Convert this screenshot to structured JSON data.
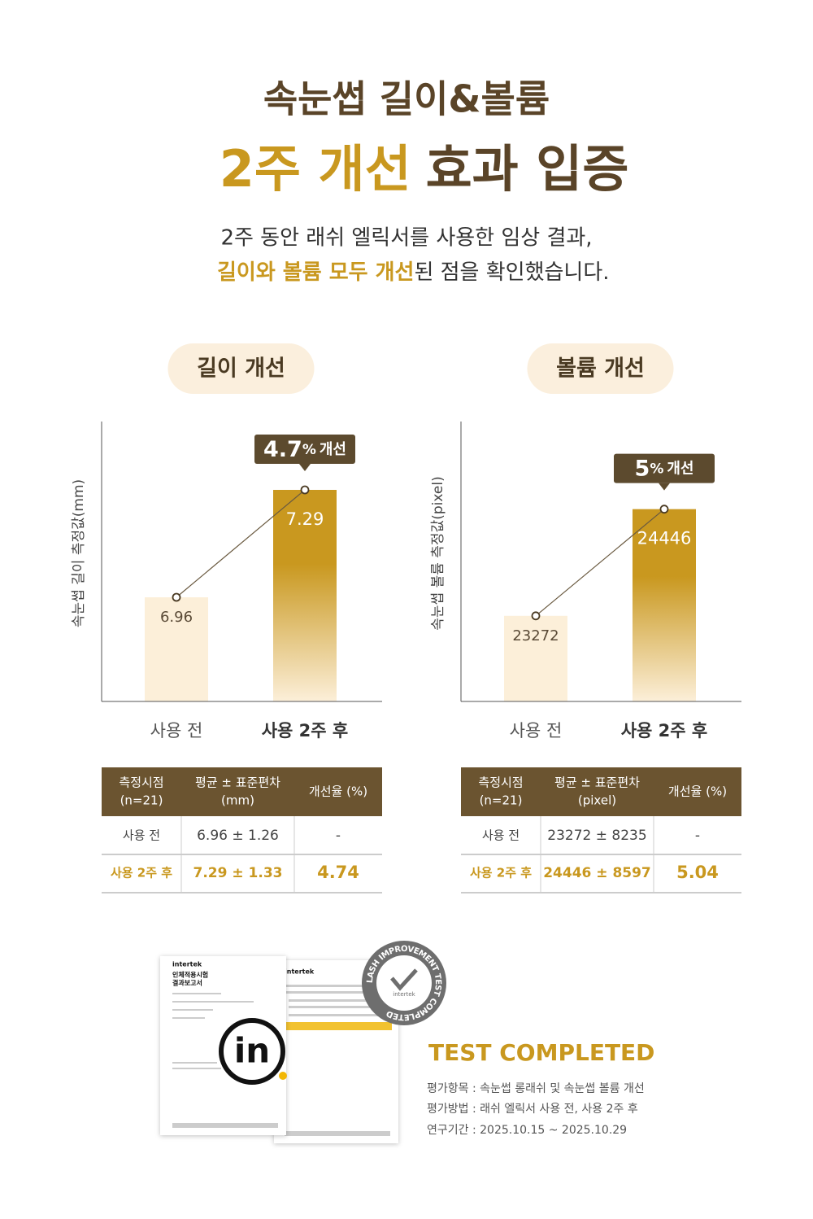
{
  "header": {
    "line1": "속눈썹 길이&볼륨",
    "line2_highlight": "2주 개선",
    "line2_rest": "효과 입증",
    "desc1": "2주 동안 래쉬 엘릭서를 사용한 임상 결과,",
    "desc2_highlight": "길이와 볼륨 모두 개선",
    "desc2_rest": "된 점을 확인했습니다."
  },
  "chart_data": [
    {
      "type": "bar",
      "title": "길이 개선",
      "y_label": "속눈썹 길이 측정값(mm)",
      "categories": [
        "사용 전",
        "사용 2주 후"
      ],
      "values": [
        6.96,
        7.29
      ],
      "colors": [
        "#fcefd9",
        "#c9981f"
      ],
      "ylim": [
        6.64,
        7.5
      ],
      "badge_value": 4.7,
      "badge_unit": "%",
      "badge_text": "개선"
    },
    {
      "type": "bar",
      "title": "볼륨 개선",
      "y_label": "속눈썹 볼륨 측정값(pixel)",
      "categories": [
        "사용 전",
        "사용 2주 후"
      ],
      "values": [
        23272,
        24446
      ],
      "colors": [
        "#fcefd9",
        "#c9981f"
      ],
      "ylim": [
        22330,
        25410
      ],
      "badge_value": 5,
      "badge_unit": "%",
      "badge_text": "개선"
    }
  ],
  "tables": [
    {
      "header": [
        [
          "측정시점",
          "(n=21)"
        ],
        [
          "평균 ± 표준편차",
          "(mm)"
        ],
        [
          "개선율 (%)"
        ]
      ],
      "rows": [
        [
          "사용 전",
          "6.96 ± 1.26",
          "-"
        ],
        [
          "사용 2주 후",
          "7.29 ± 1.33",
          "4.74"
        ]
      ]
    },
    {
      "header": [
        [
          "측정시점",
          "(n=21)"
        ],
        [
          "평균 ± 표준편차",
          "(pixel)"
        ],
        [
          "개선율 (%)"
        ]
      ],
      "rows": [
        [
          "사용 전",
          "23272 ± 8235",
          "-"
        ],
        [
          "사용 2주 후",
          "24446 ± 8597",
          "5.04"
        ]
      ]
    }
  ],
  "certificate": {
    "brand": "intertek",
    "doc_title1": "인체적용시험",
    "doc_title2": "결과보고서",
    "logo": "in",
    "seal": "LASH IMPROVEMENT TEST COMPLETED"
  },
  "footer": {
    "title": "TEST COMPLETED",
    "lines": [
      "평가항목 : 속눈썹 롱래쉬 및 속눈썹 볼륨 개선",
      "평가방법 : 래쉬 엘릭서 사용 전, 사용 2주 후",
      "연구기간 : 2025.10.15 ~ 2025.10.29"
    ]
  }
}
